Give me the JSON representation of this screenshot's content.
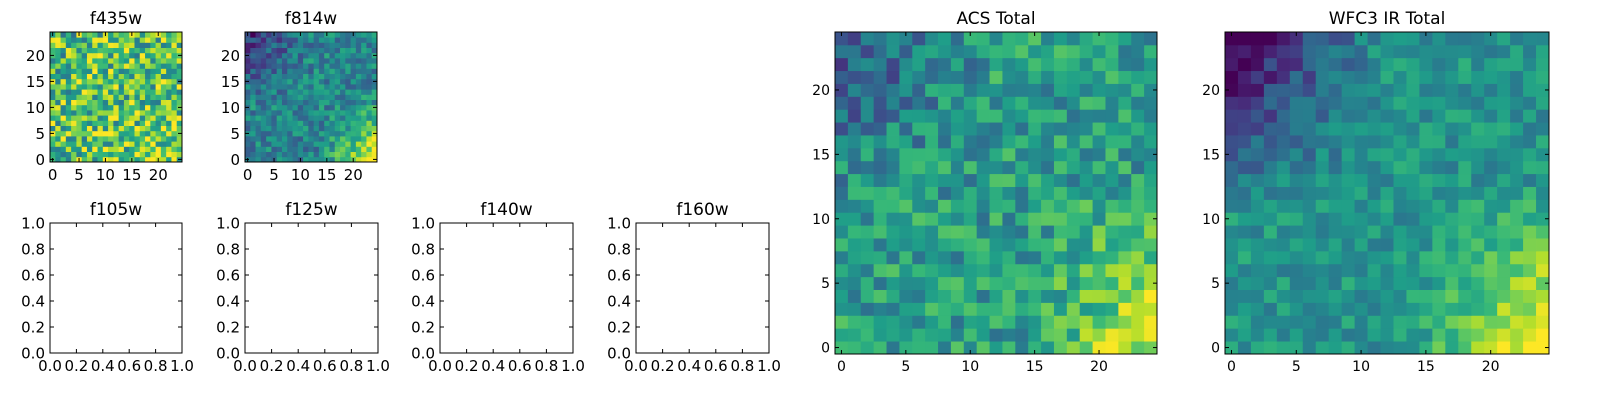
{
  "chart_data": [
    {
      "type": "heatmap",
      "title": "f435w",
      "xlim": [
        -0.5,
        24.5
      ],
      "ylim": [
        -0.5,
        24.5
      ],
      "xticks": [
        0,
        5,
        10,
        15,
        20
      ],
      "yticks": [
        0,
        5,
        10,
        15,
        20
      ],
      "xtick_labels": [
        "0",
        "5",
        "10",
        "15",
        "20"
      ],
      "ytick_labels": [
        "0",
        "5",
        "10",
        "15",
        "20"
      ],
      "grid": false,
      "colormap": "viridis",
      "grid_size": [
        25,
        25
      ],
      "pattern": {
        "dark_top_left": 0.05,
        "bright_bottom_right": 0.1,
        "noise": 0.65,
        "base": 0.72
      }
    },
    {
      "type": "heatmap",
      "title": "f814w",
      "xlim": [
        -0.5,
        24.5
      ],
      "ylim": [
        -0.5,
        24.5
      ],
      "xticks": [
        0,
        5,
        10,
        15,
        20
      ],
      "yticks": [
        0,
        5,
        10,
        15,
        20
      ],
      "xtick_labels": [
        "0",
        "5",
        "10",
        "15",
        "20"
      ],
      "ytick_labels": [
        "0",
        "5",
        "10",
        "15",
        "20"
      ],
      "grid": false,
      "colormap": "viridis",
      "grid_size": [
        25,
        25
      ],
      "pattern": {
        "dark_top_left": 0.3,
        "bright_bottom_right": 0.55,
        "noise": 0.35,
        "base": 0.45
      }
    },
    {
      "type": "empty",
      "title": "f105w",
      "xlim": [
        0,
        1
      ],
      "ylim": [
        0,
        1
      ],
      "xticks": [
        0,
        0.2,
        0.4,
        0.6,
        0.8,
        1.0
      ],
      "yticks": [
        0,
        0.2,
        0.4,
        0.6,
        0.8,
        1.0
      ],
      "xtick_labels": [
        "0.0",
        "0.2",
        "0.4",
        "0.6",
        "0.8",
        "1.0"
      ],
      "ytick_labels": [
        "0.0",
        "0.2",
        "0.4",
        "0.6",
        "0.8",
        "1.0"
      ],
      "grid": false
    },
    {
      "type": "empty",
      "title": "f125w",
      "xlim": [
        0,
        1
      ],
      "ylim": [
        0,
        1
      ],
      "xticks": [
        0,
        0.2,
        0.4,
        0.6,
        0.8,
        1.0
      ],
      "yticks": [
        0,
        0.2,
        0.4,
        0.6,
        0.8,
        1.0
      ],
      "xtick_labels": [
        "0.0",
        "0.2",
        "0.4",
        "0.6",
        "0.8",
        "1.0"
      ],
      "ytick_labels": [
        "0.0",
        "0.2",
        "0.4",
        "0.6",
        "0.8",
        "1.0"
      ],
      "grid": false
    },
    {
      "type": "empty",
      "title": "f140w",
      "xlim": [
        0,
        1
      ],
      "ylim": [
        0,
        1
      ],
      "xticks": [
        0,
        0.2,
        0.4,
        0.6,
        0.8,
        1.0
      ],
      "yticks": [
        0,
        0.2,
        0.4,
        0.6,
        0.8,
        1.0
      ],
      "xtick_labels": [
        "0.0",
        "0.2",
        "0.4",
        "0.6",
        "0.8",
        "1.0"
      ],
      "ytick_labels": [
        "0.0",
        "0.2",
        "0.4",
        "0.6",
        "0.8",
        "1.0"
      ],
      "grid": false
    },
    {
      "type": "empty",
      "title": "f160w",
      "xlim": [
        0,
        1
      ],
      "ylim": [
        0,
        1
      ],
      "xticks": [
        0,
        0.2,
        0.4,
        0.6,
        0.8,
        1.0
      ],
      "yticks": [
        0,
        0.2,
        0.4,
        0.6,
        0.8,
        1.0
      ],
      "xtick_labels": [
        "0.0",
        "0.2",
        "0.4",
        "0.6",
        "0.8",
        "1.0"
      ],
      "ytick_labels": [
        "0.0",
        "0.2",
        "0.4",
        "0.6",
        "0.8",
        "1.0"
      ],
      "grid": false
    },
    {
      "type": "heatmap",
      "title": "ACS Total",
      "xlim": [
        -0.5,
        24.5
      ],
      "ylim": [
        -0.5,
        24.5
      ],
      "xticks": [
        0,
        5,
        10,
        15,
        20
      ],
      "yticks": [
        0,
        5,
        10,
        15,
        20
      ],
      "xtick_labels": [
        "0",
        "5",
        "10",
        "15",
        "20"
      ],
      "ytick_labels": [
        "0",
        "5",
        "10",
        "15",
        "20"
      ],
      "grid": false,
      "colormap": "viridis",
      "grid_size": [
        25,
        25
      ],
      "pattern": {
        "dark_top_left": 0.3,
        "bright_bottom_right": 0.4,
        "noise": 0.38,
        "base": 0.55
      }
    },
    {
      "type": "heatmap",
      "title": "WFC3 IR Total",
      "xlim": [
        -0.5,
        24.5
      ],
      "ylim": [
        -0.5,
        24.5
      ],
      "xticks": [
        0,
        5,
        10,
        15,
        20
      ],
      "yticks": [
        0,
        5,
        10,
        15,
        20
      ],
      "xtick_labels": [
        "0",
        "5",
        "10",
        "15",
        "20"
      ],
      "ytick_labels": [
        "0",
        "5",
        "10",
        "15",
        "20"
      ],
      "grid": false,
      "colormap": "viridis",
      "grid_size": [
        25,
        25
      ],
      "pattern": {
        "dark_top_left": 0.55,
        "bright_bottom_right": 0.55,
        "noise": 0.25,
        "base": 0.52
      }
    }
  ]
}
